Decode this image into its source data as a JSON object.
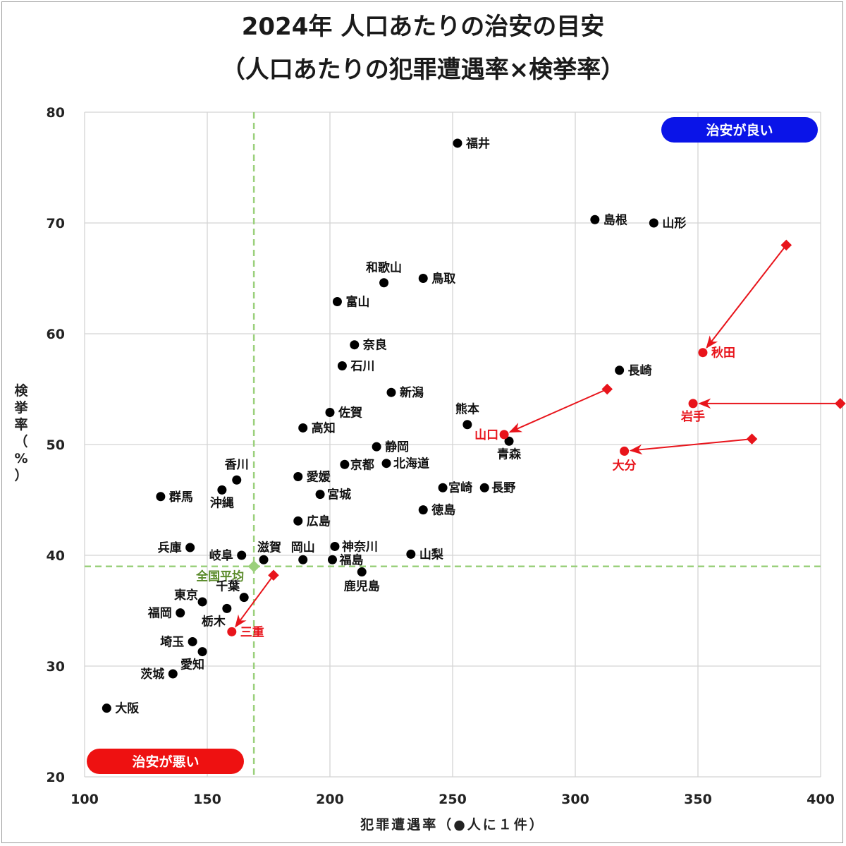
{
  "chart_data": {
    "type": "scatter",
    "title": "2024年 人口あたりの治安の目安",
    "subtitle": "（人口あたりの犯罪遭遇率×検挙率）",
    "xlabel": "犯罪遭遇率（●人に１件）",
    "ylabel": "検挙率（%）",
    "xlim": [
      100,
      400
    ],
    "ylim": [
      20,
      80
    ],
    "xticks": [
      100,
      150,
      200,
      250,
      300,
      350,
      400
    ],
    "yticks": [
      20,
      30,
      40,
      50,
      60,
      70,
      80
    ],
    "grid": true,
    "badges": {
      "good": "治安が良い",
      "bad": "治安が悪い"
    },
    "average": {
      "label": "全国平均",
      "x": 169,
      "y": 39
    },
    "points": [
      {
        "name": "福井",
        "x": 252,
        "y": 77.2
      },
      {
        "name": "島根",
        "x": 308,
        "y": 70.3
      },
      {
        "name": "山形",
        "x": 332,
        "y": 70.0
      },
      {
        "name": "和歌山",
        "x": 222,
        "y": 64.6
      },
      {
        "name": "鳥取",
        "x": 238,
        "y": 65.0
      },
      {
        "name": "富山",
        "x": 203,
        "y": 62.9
      },
      {
        "name": "奈良",
        "x": 210,
        "y": 59.0
      },
      {
        "name": "長崎",
        "x": 318,
        "y": 56.7
      },
      {
        "name": "石川",
        "x": 205,
        "y": 57.1
      },
      {
        "name": "新潟",
        "x": 225,
        "y": 54.7
      },
      {
        "name": "佐賀",
        "x": 200,
        "y": 52.9
      },
      {
        "name": "熊本",
        "x": 256,
        "y": 51.8
      },
      {
        "name": "高知",
        "x": 189,
        "y": 51.5
      },
      {
        "name": "青森",
        "x": 273,
        "y": 50.3
      },
      {
        "name": "静岡",
        "x": 219,
        "y": 49.8
      },
      {
        "name": "京都",
        "x": 206,
        "y": 48.2
      },
      {
        "name": "北海道",
        "x": 223,
        "y": 48.3
      },
      {
        "name": "香川",
        "x": 162,
        "y": 46.8
      },
      {
        "name": "愛媛",
        "x": 187,
        "y": 47.1
      },
      {
        "name": "宮崎",
        "x": 246,
        "y": 46.1
      },
      {
        "name": "長野",
        "x": 263,
        "y": 46.1
      },
      {
        "name": "沖縄",
        "x": 156,
        "y": 45.9
      },
      {
        "name": "宮城",
        "x": 196,
        "y": 45.5
      },
      {
        "name": "群馬",
        "x": 131,
        "y": 45.3
      },
      {
        "name": "徳島",
        "x": 238,
        "y": 44.1
      },
      {
        "name": "広島",
        "x": 187,
        "y": 43.1
      },
      {
        "name": "兵庫",
        "x": 143,
        "y": 40.7
      },
      {
        "name": "神奈川",
        "x": 202,
        "y": 40.8
      },
      {
        "name": "山梨",
        "x": 233,
        "y": 40.1
      },
      {
        "name": "岐阜",
        "x": 164,
        "y": 40.0
      },
      {
        "name": "滋賀",
        "x": 173,
        "y": 39.6
      },
      {
        "name": "岡山",
        "x": 189,
        "y": 39.6
      },
      {
        "name": "福島",
        "x": 201,
        "y": 39.6
      },
      {
        "name": "鹿児島",
        "x": 213,
        "y": 38.5
      },
      {
        "name": "千葉",
        "x": 165,
        "y": 36.2
      },
      {
        "name": "東京",
        "x": 148,
        "y": 35.8
      },
      {
        "name": "栃木",
        "x": 158,
        "y": 35.2
      },
      {
        "name": "福岡",
        "x": 139,
        "y": 34.8
      },
      {
        "name": "埼玉",
        "x": 144,
        "y": 32.2
      },
      {
        "name": "愛知",
        "x": 148,
        "y": 31.3
      },
      {
        "name": "茨城",
        "x": 136,
        "y": 29.3
      },
      {
        "name": "大阪",
        "x": 109,
        "y": 26.2
      }
    ],
    "moved": [
      {
        "name": "秋田",
        "from": {
          "x": 386,
          "y": 68.0
        },
        "to": {
          "x": 352,
          "y": 58.3
        }
      },
      {
        "name": "山口",
        "from": {
          "x": 313,
          "y": 55.0
        },
        "to": {
          "x": 271,
          "y": 50.9
        }
      },
      {
        "name": "岩手",
        "from": {
          "x": 408,
          "y": 53.7
        },
        "to": {
          "x": 348,
          "y": 53.7
        }
      },
      {
        "name": "大分",
        "from": {
          "x": 372,
          "y": 50.5
        },
        "to": {
          "x": 320,
          "y": 49.4
        }
      },
      {
        "name": "三重",
        "from": {
          "x": 177,
          "y": 38.2
        },
        "to": {
          "x": 160,
          "y": 33.1
        }
      }
    ],
    "colors": {
      "point": "#000000",
      "moved": "#e8141b",
      "average": "#9bd07c",
      "grid": "#d4d4d4",
      "good_badge": "#0a14e8",
      "bad_badge": "#ee1111"
    }
  }
}
